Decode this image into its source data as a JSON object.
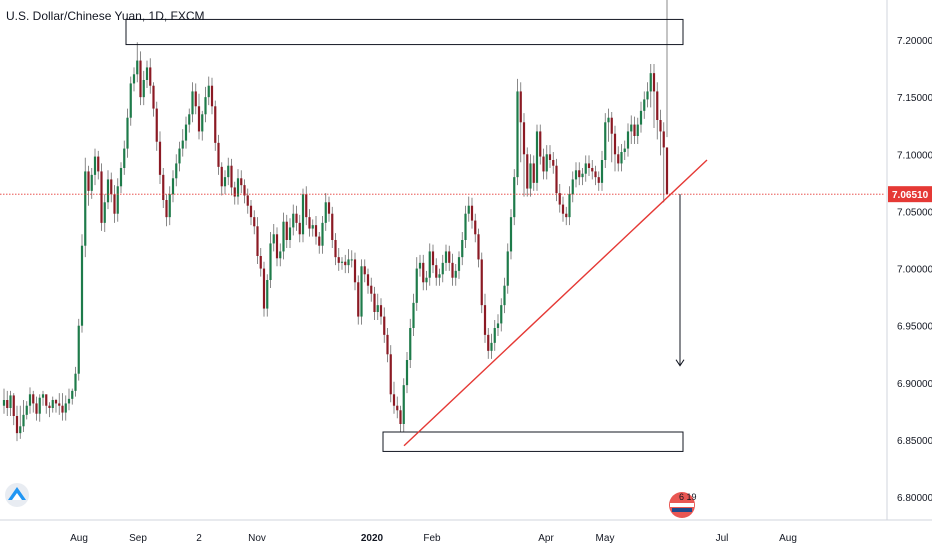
{
  "header": {
    "title": "U.S. Dollar/Chinese Yuan, 1D, FXCM"
  },
  "logo": {
    "name": "tradingview-logo-icon"
  },
  "badge": {
    "text": "6 19",
    "icon": "flag-badge-icon"
  },
  "colors": {
    "up": "#1e7b4a",
    "down": "#8b1a24",
    "wick": "#6b6b6b",
    "trendline": "#e53935",
    "price_line": "#e53935",
    "price_tag": "#e53935",
    "axis_line": "#d1d4dc",
    "box_border": "#131722"
  },
  "chart_data": {
    "type": "candlestick",
    "title": "U.S. Dollar/Chinese Yuan, 1D, FXCM",
    "ylim": [
      6.78,
      7.235
    ],
    "y_ticks": [
      "7.20000",
      "7.15000",
      "7.10000",
      "7.05000",
      "7.00000",
      "6.95000",
      "6.90000",
      "6.85000",
      "6.80000"
    ],
    "x_ticks": [
      "Aug",
      "Sep",
      "2",
      "Nov",
      "2020",
      "Feb",
      "Apr",
      "May",
      "Jul",
      "Aug"
    ],
    "last_price": "7.06510",
    "grid": false,
    "series": [
      {
        "name": "",
        "closes": [
          6.885,
          6.878,
          6.889,
          6.871,
          6.856,
          6.862,
          6.872,
          6.88,
          6.89,
          6.882,
          6.873,
          6.887,
          6.89,
          6.88,
          6.878,
          6.885,
          6.882,
          6.88,
          6.874,
          6.882,
          6.886,
          6.893,
          6.908,
          6.95,
          7.02,
          7.085,
          7.068,
          7.082,
          7.098,
          7.085,
          7.04,
          7.058,
          7.078,
          7.065,
          7.048,
          7.072,
          7.088,
          7.105,
          7.132,
          7.162,
          7.17,
          7.182,
          7.15,
          7.165,
          7.176,
          7.16,
          7.14,
          7.111,
          7.082,
          7.06,
          7.045,
          7.065,
          7.079,
          7.092,
          7.105,
          7.112,
          7.126,
          7.135,
          7.155,
          7.142,
          7.12,
          7.135,
          7.15,
          7.16,
          7.142,
          7.11,
          7.089,
          7.072,
          7.08,
          7.09,
          7.071,
          7.063,
          7.079,
          7.073,
          7.064,
          7.055,
          7.045,
          7.037,
          7.011,
          7.0,
          6.965,
          6.99,
          7.022,
          7.03,
          7.009,
          7.015,
          7.041,
          7.025,
          7.036,
          7.048,
          7.04,
          7.03,
          7.065,
          7.045,
          7.035,
          7.038,
          7.028,
          7.02,
          7.04,
          7.058,
          7.048,
          7.025,
          7.01,
          7.005,
          7.006,
          7.003,
          7.008,
          7.008,
          6.988,
          6.958,
          7.002,
          6.995,
          6.985,
          6.978,
          6.962,
          6.968,
          6.958,
          6.942,
          6.925,
          6.89,
          6.88,
          6.876,
          6.864,
          6.898,
          6.92,
          6.948,
          6.97,
          7.0,
          7.005,
          6.988,
          6.992,
          7.015,
          7.003,
          6.992,
          6.995,
          7.005,
          7.015,
          7.005,
          6.992,
          6.998,
          7.01,
          7.025,
          7.048,
          7.055,
          7.042,
          7.03,
          7.008,
          6.968,
          6.942,
          6.928,
          6.935,
          6.948,
          6.952,
          6.968,
          6.985,
          7.015,
          7.045,
          7.08,
          7.155,
          7.128,
          7.1,
          7.07,
          7.092,
          7.075,
          7.12,
          7.098,
          7.085,
          7.1,
          7.095,
          7.09,
          7.066,
          7.056,
          7.048,
          7.045,
          7.065,
          7.078,
          7.086,
          7.08,
          7.083,
          7.092,
          7.088,
          7.085,
          7.08,
          7.075,
          7.095,
          7.128,
          7.132,
          7.118,
          7.1,
          7.092,
          7.102,
          7.105,
          7.12,
          7.126,
          7.116,
          7.126,
          7.138,
          7.148,
          7.155,
          7.171,
          7.155,
          7.13,
          7.12,
          7.106,
          7.065
        ],
        "highs": [
          6.895,
          6.893,
          6.893,
          6.891,
          6.88,
          6.88,
          6.885,
          6.884,
          6.896,
          6.893,
          6.888,
          6.89,
          6.893,
          6.888,
          6.883,
          6.888,
          6.886,
          6.891,
          6.891,
          6.889,
          6.895,
          6.895,
          6.914,
          6.956,
          7.03,
          7.097,
          7.09,
          7.088,
          7.105,
          7.103,
          7.092,
          7.065,
          7.086,
          7.084,
          7.073,
          7.079,
          7.093,
          7.112,
          7.14,
          7.168,
          7.176,
          7.198,
          7.19,
          7.173,
          7.182,
          7.184,
          7.163,
          7.146,
          7.12,
          7.088,
          7.065,
          7.072,
          7.086,
          7.1,
          7.111,
          7.122,
          7.133,
          7.14,
          7.163,
          7.162,
          7.153,
          7.138,
          7.159,
          7.168,
          7.167,
          7.147,
          7.117,
          7.093,
          7.086,
          7.097,
          7.096,
          7.076,
          7.087,
          7.086,
          7.078,
          7.07,
          7.06,
          7.051,
          7.045,
          7.018,
          7.006,
          6.995,
          7.032,
          7.039,
          7.036,
          7.022,
          7.049,
          7.047,
          7.044,
          7.056,
          7.055,
          7.047,
          7.07,
          7.072,
          7.052,
          7.043,
          7.046,
          7.032,
          7.046,
          7.066,
          7.063,
          7.054,
          7.031,
          7.018,
          7.01,
          7.012,
          7.017,
          7.016,
          7.014,
          6.994,
          7.008,
          7.008,
          7.0,
          6.992,
          6.984,
          6.978,
          6.974,
          6.966,
          6.948,
          6.933,
          6.901,
          6.888,
          6.88,
          6.904,
          6.927,
          6.956,
          6.978,
          7.01,
          7.012,
          7.012,
          6.998,
          7.022,
          7.021,
          7.009,
          7.0,
          7.012,
          7.021,
          7.02,
          7.013,
          7.004,
          7.015,
          7.032,
          7.055,
          7.063,
          7.062,
          7.048,
          7.035,
          7.014,
          6.978,
          6.948,
          6.943,
          6.955,
          6.96,
          6.974,
          6.992,
          7.022,
          7.052,
          7.087,
          7.166,
          7.163,
          7.136,
          7.106,
          7.1,
          7.099,
          7.126,
          7.126,
          7.105,
          7.108,
          7.108,
          7.102,
          7.096,
          7.074,
          7.063,
          7.054,
          7.072,
          7.085,
          7.093,
          7.093,
          7.088,
          7.099,
          7.099,
          7.095,
          7.09,
          7.085,
          7.103,
          7.136,
          7.14,
          7.137,
          7.125,
          7.107,
          7.109,
          7.112,
          7.127,
          7.134,
          7.133,
          7.132,
          7.146,
          7.155,
          7.163,
          7.179,
          7.179,
          7.163,
          7.139,
          7.128,
          7.115
        ],
        "lows": [
          6.873,
          6.871,
          6.871,
          6.863,
          6.849,
          6.851,
          6.857,
          6.868,
          6.873,
          6.874,
          6.867,
          6.866,
          6.88,
          6.873,
          6.87,
          6.874,
          6.874,
          6.872,
          6.867,
          6.867,
          6.876,
          6.881,
          6.888,
          6.902,
          6.944,
          7.01,
          7.055,
          7.061,
          7.073,
          7.078,
          7.033,
          7.032,
          7.052,
          7.058,
          7.04,
          7.041,
          7.066,
          7.082,
          7.097,
          7.125,
          7.155,
          7.163,
          7.143,
          7.143,
          7.158,
          7.153,
          7.133,
          7.103,
          7.074,
          7.053,
          7.037,
          7.038,
          7.058,
          7.072,
          7.085,
          7.098,
          7.105,
          7.119,
          7.128,
          7.135,
          7.113,
          7.112,
          7.128,
          7.143,
          7.135,
          7.103,
          7.082,
          7.064,
          7.065,
          7.073,
          7.064,
          7.056,
          7.056,
          7.066,
          7.057,
          7.048,
          7.038,
          7.03,
          7.004,
          6.993,
          6.958,
          6.958,
          6.983,
          7.015,
          7.002,
          7.002,
          7.008,
          7.018,
          7.018,
          7.029,
          7.033,
          7.023,
          7.023,
          7.038,
          7.028,
          7.028,
          7.021,
          7.013,
          7.013,
          7.033,
          7.041,
          7.018,
          7.003,
          6.998,
          6.999,
          6.996,
          6.996,
          7.001,
          6.981,
          6.951,
          6.951,
          6.988,
          6.978,
          6.971,
          6.955,
          6.955,
          6.951,
          6.935,
          6.918,
          6.883,
          6.873,
          6.869,
          6.857,
          6.857,
          6.891,
          6.913,
          6.941,
          6.963,
          6.993,
          6.981,
          6.981,
          6.985,
          6.996,
          6.985,
          6.985,
          6.988,
          6.998,
          6.998,
          6.985,
          6.985,
          6.991,
          7.003,
          7.018,
          7.041,
          7.035,
          7.023,
          7.001,
          6.961,
          6.935,
          6.921,
          6.921,
          6.928,
          6.941,
          6.945,
          6.961,
          6.978,
          7.008,
          7.038,
          7.073,
          7.093,
          7.063,
          7.063,
          7.063,
          7.068,
          7.068,
          7.091,
          7.078,
          7.078,
          7.088,
          7.083,
          7.059,
          7.049,
          7.041,
          7.038,
          7.038,
          7.058,
          7.071,
          7.073,
          7.073,
          7.076,
          7.081,
          7.078,
          7.073,
          7.068,
          7.068,
          7.088,
          7.111,
          7.093,
          7.085,
          7.085,
          7.085,
          7.095,
          7.098,
          7.109,
          7.109,
          7.109,
          7.119,
          7.131,
          7.141,
          7.141,
          7.123,
          7.113,
          7.099,
          7.058
        ],
        "opens": [
          6.88,
          6.885,
          6.878,
          6.889,
          6.871,
          6.856,
          6.862,
          6.872,
          6.88,
          6.89,
          6.882,
          6.873,
          6.887,
          6.89,
          6.88,
          6.878,
          6.885,
          6.882,
          6.88,
          6.874,
          6.882,
          6.886,
          6.893,
          6.908,
          6.95,
          7.02,
          7.085,
          7.068,
          7.082,
          7.098,
          7.085,
          7.04,
          7.058,
          7.078,
          7.065,
          7.048,
          7.072,
          7.088,
          7.105,
          7.132,
          7.162,
          7.17,
          7.182,
          7.15,
          7.165,
          7.176,
          7.16,
          7.14,
          7.111,
          7.082,
          7.06,
          7.045,
          7.065,
          7.079,
          7.092,
          7.105,
          7.112,
          7.126,
          7.135,
          7.155,
          7.142,
          7.12,
          7.135,
          7.15,
          7.16,
          7.142,
          7.11,
          7.089,
          7.072,
          7.08,
          7.09,
          7.071,
          7.063,
          7.079,
          7.073,
          7.064,
          7.055,
          7.045,
          7.037,
          7.011,
          7.0,
          6.965,
          6.99,
          7.022,
          7.03,
          7.009,
          7.015,
          7.041,
          7.025,
          7.036,
          7.048,
          7.04,
          7.03,
          7.065,
          7.045,
          7.035,
          7.038,
          7.028,
          7.02,
          7.04,
          7.058,
          7.048,
          7.025,
          7.01,
          7.005,
          7.006,
          7.003,
          7.008,
          7.008,
          6.988,
          6.958,
          7.002,
          6.995,
          6.985,
          6.978,
          6.962,
          6.968,
          6.958,
          6.942,
          6.925,
          6.89,
          6.88,
          6.876,
          6.864,
          6.898,
          6.92,
          6.948,
          6.97,
          7.0,
          7.005,
          6.988,
          6.992,
          7.015,
          7.003,
          6.992,
          6.995,
          7.005,
          7.015,
          7.005,
          6.992,
          6.998,
          7.01,
          7.025,
          7.048,
          7.055,
          7.042,
          7.03,
          7.008,
          6.968,
          6.942,
          6.928,
          6.935,
          6.948,
          6.952,
          6.968,
          6.985,
          7.015,
          7.045,
          7.08,
          7.155,
          7.128,
          7.1,
          7.07,
          7.092,
          7.075,
          7.12,
          7.098,
          7.085,
          7.1,
          7.095,
          7.09,
          7.066,
          7.056,
          7.048,
          7.045,
          7.065,
          7.078,
          7.086,
          7.08,
          7.083,
          7.092,
          7.088,
          7.085,
          7.08,
          7.075,
          7.095,
          7.128,
          7.132,
          7.118,
          7.1,
          7.092,
          7.102,
          7.105,
          7.12,
          7.126,
          7.116,
          7.126,
          7.138,
          7.148,
          7.155,
          7.171,
          7.155,
          7.13,
          7.12,
          7.106
        ]
      }
    ],
    "annotations": {
      "resistance_box": {
        "from": 7.218,
        "to": 7.196
      },
      "support_box": {
        "from": 6.857,
        "to": 6.84
      },
      "trendline": {
        "from": 6.845,
        "to": 7.095
      },
      "target_arrow": {
        "from": 7.065,
        "to": 6.915
      }
    }
  }
}
